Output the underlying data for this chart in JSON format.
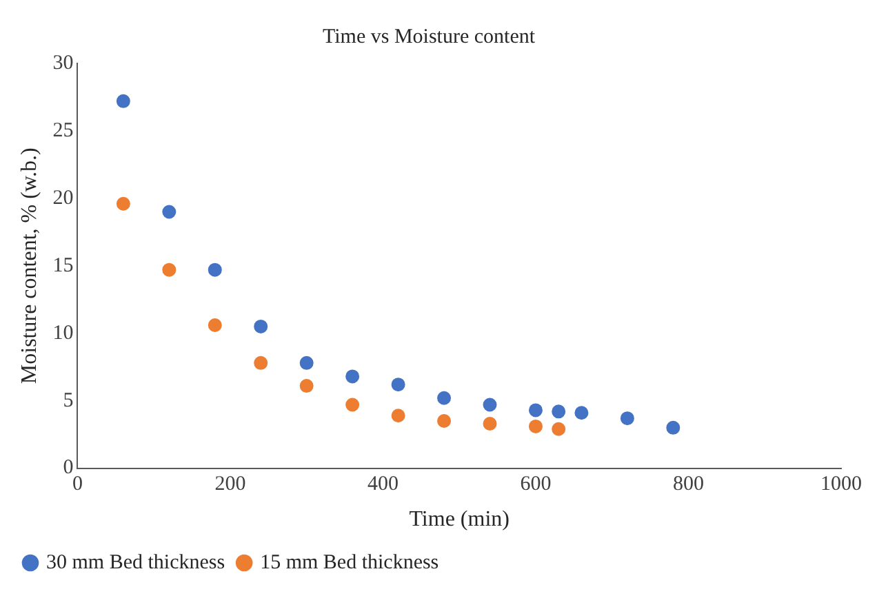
{
  "chart_data": {
    "type": "scatter",
    "title": "Time vs Moisture content",
    "xlabel": "Time (min)",
    "ylabel": "Moisture content, % (w.b.)",
    "xlim": [
      0,
      1000
    ],
    "xticks": [
      0,
      200,
      400,
      600,
      800,
      1000
    ],
    "ylim": [
      0,
      30
    ],
    "yticks": [
      0,
      5,
      10,
      15,
      20,
      25,
      30
    ],
    "grid": false,
    "legend": "bottom",
    "marker": "circle",
    "series": [
      {
        "name": "30 mm Bed thickness",
        "color": "#4472c4",
        "x": [
          60,
          120,
          180,
          240,
          300,
          360,
          420,
          480,
          540,
          600,
          630,
          660,
          720,
          780
        ],
        "values": [
          27.2,
          19.0,
          14.7,
          10.5,
          7.8,
          6.8,
          6.2,
          5.2,
          4.7,
          4.3,
          4.2,
          4.1,
          3.7,
          3.0
        ]
      },
      {
        "name": "15 mm Bed thickness",
        "color": "#ed7d31",
        "x": [
          60,
          120,
          180,
          240,
          300,
          360,
          420,
          480,
          540,
          600,
          630
        ],
        "values": [
          19.6,
          14.7,
          10.6,
          7.8,
          6.1,
          4.7,
          3.9,
          3.5,
          3.3,
          3.1,
          2.9
        ]
      }
    ]
  }
}
